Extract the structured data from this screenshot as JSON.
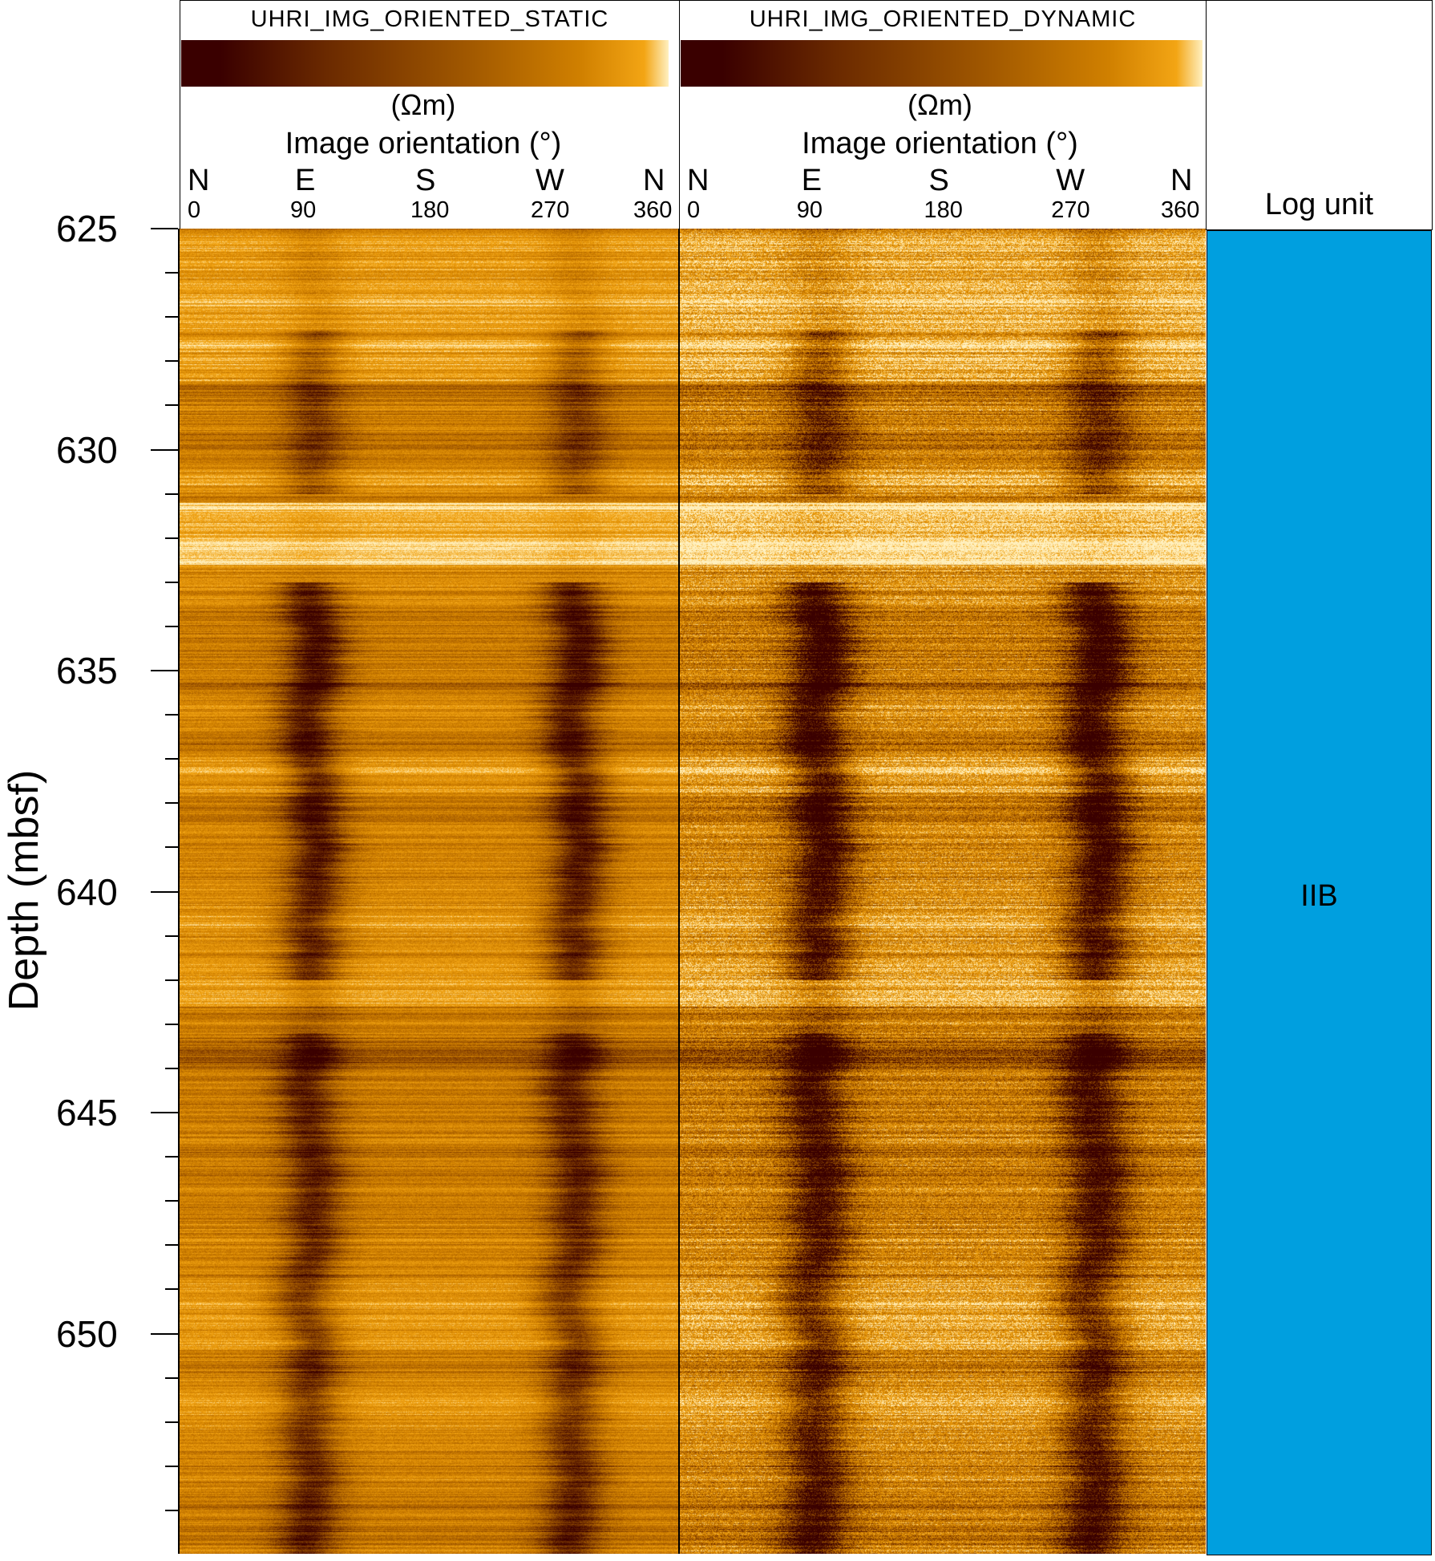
{
  "tracks": [
    {
      "title": "UHRI_IMG_ORIENTED_STATIC",
      "unit": "(Ωm)",
      "axis_label": "Image orientation (°)"
    },
    {
      "title": "UHRI_IMG_ORIENTED_DYNAMIC",
      "unit": "(Ωm)",
      "axis_label": "Image orientation (°)"
    }
  ],
  "cardinals": [
    "N",
    "E",
    "S",
    "W",
    "N"
  ],
  "azimuths": [
    "0",
    "90",
    "180",
    "270",
    "360"
  ],
  "log_unit": {
    "header": "Log unit",
    "value": "IIB",
    "color": "#009FDF"
  },
  "depth_axis": {
    "label": "Depth (mbsf)",
    "ticks": [
      "625",
      "630",
      "635",
      "640",
      "645",
      "650"
    ],
    "min": 625,
    "max": 654.8,
    "minor_step": 1
  },
  "colormap": [
    "#3a0000",
    "#6b2a00",
    "#a35a00",
    "#d08000",
    "#f3a514",
    "#fff0c0"
  ]
}
